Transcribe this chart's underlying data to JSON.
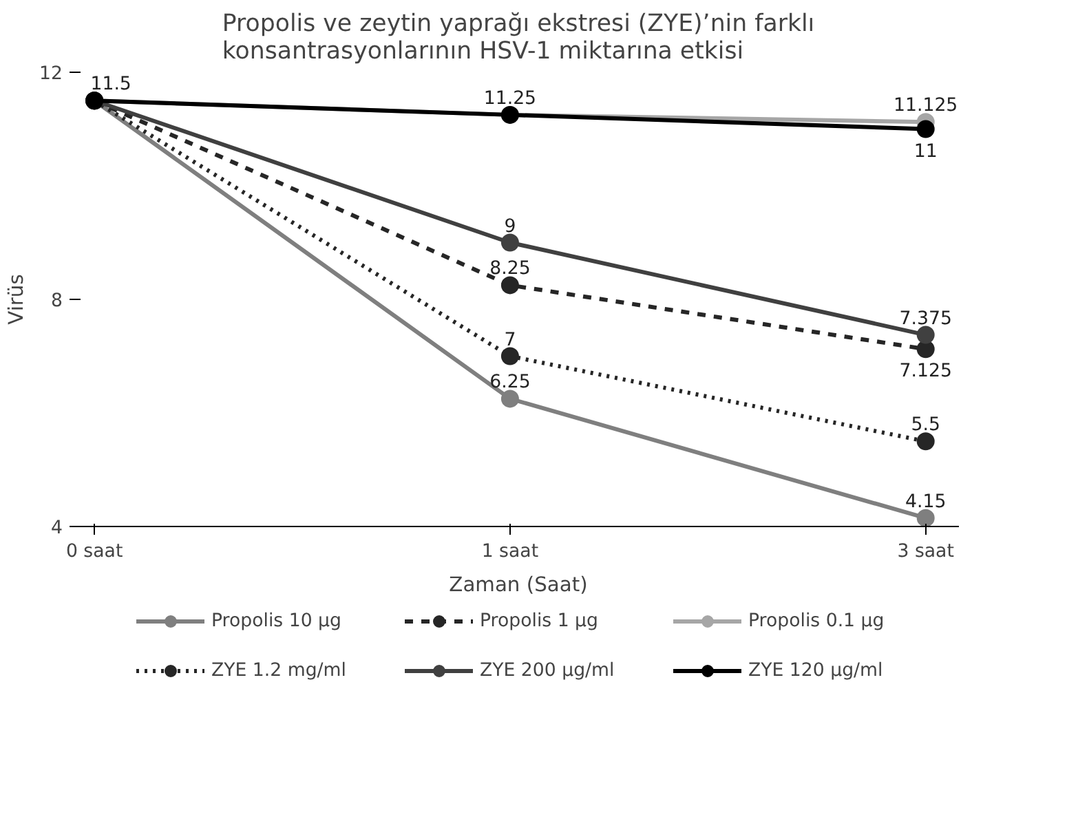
{
  "chart_data": {
    "type": "line",
    "title": "Propolis ve zeytin yaprağı ekstresi (ZYE)’nin farklı\nkonsantrasyonlarının HSV-1 miktarına etkisi",
    "xlabel": "Zaman (Saat)",
    "ylabel": "Virüs",
    "categories": [
      "0 saat",
      "1 saat",
      "3 saat"
    ],
    "ylim": [
      4,
      12
    ],
    "yticks": [
      4,
      8,
      12
    ],
    "grid": false,
    "legend": "bottom",
    "marker": "circle",
    "series": [
      {
        "name": "Propolis 10 µg",
        "color": "#7f7f7f",
        "line_style": "solid",
        "values": [
          11.5,
          6.25,
          4.15
        ],
        "value_labels": [
          null,
          "6.25",
          "4.15"
        ]
      },
      {
        "name": "Propolis 1 µg",
        "color": "#262626",
        "line_style": "dashed",
        "values": [
          11.5,
          8.25,
          7.125
        ],
        "value_labels": [
          null,
          "8.25",
          "7.125"
        ]
      },
      {
        "name": "Propolis 0.1 µg",
        "color": "#a6a6a6",
        "line_style": "solid",
        "values": [
          11.5,
          11.25,
          11.125
        ],
        "value_labels": [
          null,
          null,
          "11.125"
        ]
      },
      {
        "name": "ZYE 1.2 mg/ml",
        "color": "#262626",
        "line_style": "dotted",
        "values": [
          11.5,
          7,
          5.5
        ],
        "value_labels": [
          null,
          "7",
          "5.5"
        ]
      },
      {
        "name": "ZYE 200 µg/ml",
        "color": "#404040",
        "line_style": "solid",
        "values": [
          11.5,
          9,
          7.375
        ],
        "value_labels": [
          null,
          "9",
          "7.375"
        ]
      },
      {
        "name": "ZYE 120 µg/ml",
        "color": "#000000",
        "line_style": "solid",
        "values": [
          11.5,
          11.25,
          11
        ],
        "value_labels": [
          "11.5",
          "11.25",
          "11"
        ]
      }
    ]
  }
}
